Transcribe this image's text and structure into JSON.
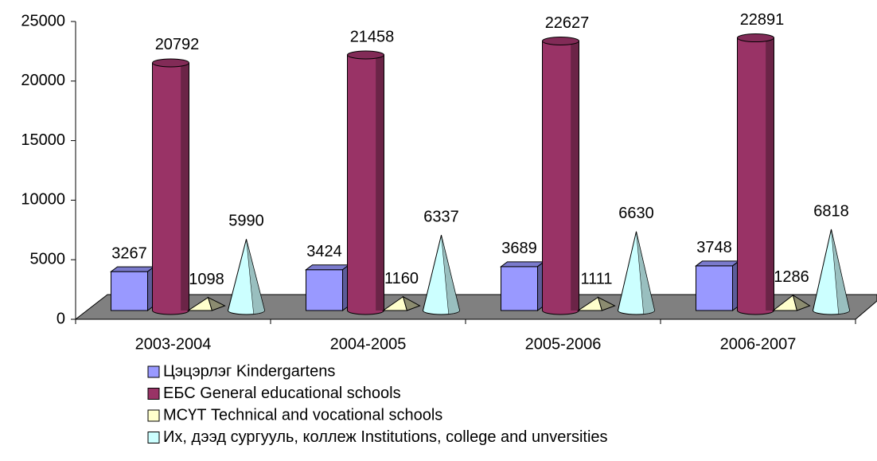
{
  "chart_data": {
    "type": "bar",
    "categories": [
      "2003-2004",
      "2004-2005",
      "2005-2006",
      "2006-2007"
    ],
    "series": [
      {
        "name": "Цэцэрлэг Kindergartens",
        "color": "#9999ff",
        "shape": "box",
        "values": [
          3267,
          3424,
          3689,
          3748
        ]
      },
      {
        "name": "ЕБС General educational schools",
        "color": "#993366",
        "shape": "cylinder",
        "values": [
          20792,
          21458,
          22627,
          22891
        ]
      },
      {
        "name": "МСҮТ Technical and vocational schools",
        "color": "#ffffcc",
        "shape": "pyramid",
        "values": [
          1098,
          1160,
          1111,
          1286
        ]
      },
      {
        "name": "Их, дээд сургууль, коллеж Institutions, college and unversities",
        "color": "#ccffff",
        "shape": "cone",
        "values": [
          5990,
          6337,
          6630,
          6818
        ]
      }
    ],
    "ylim": [
      0,
      25000
    ],
    "yticks": [
      0,
      5000,
      10000,
      15000,
      20000,
      25000
    ],
    "legend": "bottom"
  }
}
